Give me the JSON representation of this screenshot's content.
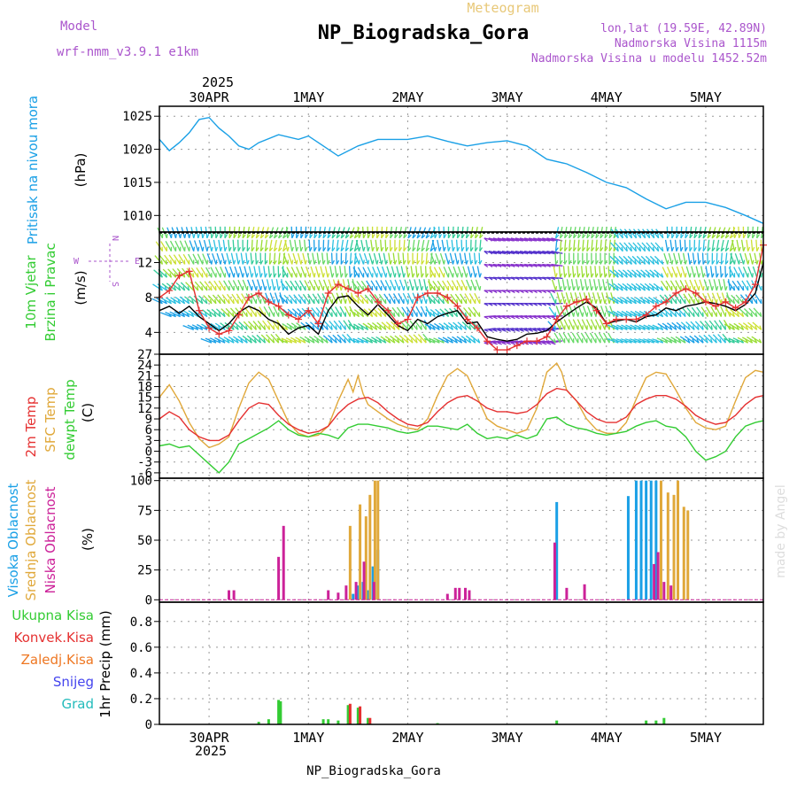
{
  "header": {
    "model_label": "Model",
    "model_name": "wrf-nmm_v3.9.1  e1km",
    "center_title": "Meteogram",
    "station": "NP_Biogradska_Gora",
    "coords": "lon,lat (19.59E, 42.89N)",
    "altitude": "Nadmorska Visina 1115m",
    "model_altitude": "Nadmorska Visina u modelu 1452.52m",
    "footer_station": "NP_Biogradska_Gora",
    "watermark": "made by Angel"
  },
  "time_axis": {
    "year_label": "2025",
    "start": "30APR",
    "ticks": [
      "30APR",
      "1MAY",
      "2MAY",
      "3MAY",
      "4MAY",
      "5MAY"
    ],
    "tick_days": [
      0,
      1,
      2,
      3,
      4,
      5
    ],
    "range_days": [
      -0.5,
      5.58
    ]
  },
  "chart_data": [
    {
      "type": "line",
      "id": "pressure",
      "ylabel_name": "Pritisak na nivou mora",
      "ylabel_unit": "(hPa)",
      "ylim": [
        1007.5,
        1026.5
      ],
      "yticks": [
        1010,
        1015,
        1020,
        1025
      ],
      "grid": true,
      "series": [
        {
          "color": "#1aa0e6",
          "x": [
            -0.5,
            -0.4,
            -0.3,
            -0.2,
            -0.1,
            0.0,
            0.1,
            0.2,
            0.3,
            0.4,
            0.5,
            0.7,
            0.9,
            1.0,
            1.1,
            1.3,
            1.5,
            1.7,
            2.0,
            2.2,
            2.4,
            2.6,
            2.8,
            3.0,
            3.2,
            3.4,
            3.6,
            3.8,
            4.0,
            4.2,
            4.4,
            4.6,
            4.8,
            5.0,
            5.2,
            5.4,
            5.58
          ],
          "y": [
            1021.5,
            1019.8,
            1021.0,
            1022.5,
            1024.5,
            1024.8,
            1023.2,
            1022.0,
            1020.5,
            1020.0,
            1021.0,
            1022.2,
            1021.5,
            1022.0,
            1021.0,
            1019.0,
            1020.5,
            1021.5,
            1021.5,
            1022.0,
            1021.2,
            1020.5,
            1021.0,
            1021.3,
            1020.5,
            1018.5,
            1017.8,
            1016.5,
            1015.0,
            1014.2,
            1012.5,
            1011.0,
            1012.0,
            1012.0,
            1011.2,
            1010.0,
            1008.8
          ]
        }
      ]
    },
    {
      "type": "line",
      "id": "wind",
      "ylabel_name": "10m Vjetar Brzina i Pravac",
      "ylabel_unit": "(m/s)",
      "compass": {
        "w": "W",
        "e": "E",
        "n": "N",
        "s": "S"
      },
      "ylim": [
        1.5,
        15.5
      ],
      "yticks": [
        4,
        8,
        12
      ],
      "grid": true,
      "barb_colors": [
        "#1aa0e6",
        "#29c0e0",
        "#33cc99",
        "#99dd33",
        "#cce033",
        "#66d966",
        "#5533cc",
        "#8833cc"
      ],
      "series": [
        {
          "color": "#000000",
          "x": [
            -0.5,
            -0.4,
            -0.3,
            -0.2,
            -0.1,
            0.0,
            0.1,
            0.2,
            0.3,
            0.4,
            0.5,
            0.6,
            0.7,
            0.8,
            0.9,
            1.0,
            1.1,
            1.2,
            1.3,
            1.4,
            1.5,
            1.6,
            1.7,
            1.8,
            1.9,
            2.0,
            2.1,
            2.2,
            2.3,
            2.4,
            2.5,
            2.6,
            2.7,
            2.8,
            2.9,
            3.0,
            3.1,
            3.2,
            3.3,
            3.4,
            3.5,
            3.6,
            3.7,
            3.8,
            3.9,
            4.0,
            4.1,
            4.2,
            4.3,
            4.4,
            4.5,
            4.6,
            4.7,
            4.8,
            4.9,
            5.0,
            5.1,
            5.2,
            5.3,
            5.4,
            5.5,
            5.58
          ],
          "y": [
            6.5,
            7.0,
            6.2,
            7.0,
            5.8,
            5.0,
            4.2,
            5.0,
            6.3,
            7.0,
            6.5,
            5.5,
            5.0,
            3.8,
            4.5,
            4.8,
            3.8,
            6.5,
            8.0,
            8.2,
            7.0,
            6.0,
            7.2,
            6.0,
            4.8,
            4.2,
            5.5,
            5.0,
            5.8,
            6.2,
            6.5,
            5.0,
            5.2,
            3.5,
            3.2,
            3.0,
            3.2,
            3.8,
            3.9,
            4.2,
            5.2,
            6.0,
            6.8,
            7.5,
            6.8,
            5.0,
            5.3,
            5.5,
            5.2,
            5.8,
            6.0,
            6.8,
            6.5,
            7.0,
            7.2,
            7.5,
            7.3,
            7.0,
            6.5,
            7.2,
            8.5,
            12.0
          ]
        },
        {
          "color": "#e53030",
          "x": [
            -0.5,
            -0.4,
            -0.3,
            -0.2,
            -0.1,
            0.0,
            0.1,
            0.2,
            0.3,
            0.4,
            0.5,
            0.6,
            0.7,
            0.8,
            0.9,
            1.0,
            1.1,
            1.2,
            1.3,
            1.4,
            1.5,
            1.6,
            1.7,
            1.8,
            1.9,
            2.0,
            2.1,
            2.2,
            2.3,
            2.4,
            2.5,
            2.6,
            2.7,
            2.8,
            2.9,
            3.0,
            3.1,
            3.2,
            3.3,
            3.4,
            3.5,
            3.6,
            3.7,
            3.8,
            3.9,
            4.0,
            4.1,
            4.2,
            4.3,
            4.4,
            4.5,
            4.6,
            4.7,
            4.8,
            4.9,
            5.0,
            5.1,
            5.2,
            5.3,
            5.4,
            5.5,
            5.58
          ],
          "y": [
            8.0,
            8.8,
            10.5,
            11.0,
            6.5,
            4.5,
            3.8,
            4.2,
            6.0,
            8.0,
            8.5,
            7.5,
            7.0,
            6.0,
            5.5,
            6.5,
            5.0,
            8.5,
            9.5,
            9.0,
            8.5,
            9.0,
            7.5,
            6.5,
            5.0,
            5.5,
            8.0,
            8.5,
            8.5,
            8.0,
            7.0,
            5.5,
            4.5,
            3.0,
            2.0,
            2.0,
            2.5,
            3.0,
            3.0,
            3.5,
            5.5,
            7.0,
            7.5,
            7.8,
            6.5,
            5.0,
            5.5,
            5.5,
            5.5,
            6.0,
            7.0,
            7.5,
            8.5,
            9.0,
            8.5,
            7.5,
            7.0,
            7.5,
            6.8,
            7.5,
            9.5,
            14.0
          ]
        }
      ]
    },
    {
      "type": "line",
      "id": "temperature",
      "ylabel_t2": "2m Temp",
      "ylabel_sfc": "SFC Temp",
      "ylabel_dew": "dewpt Temp",
      "ylabel_unit": "(C)",
      "ylim": [
        -7.5,
        27
      ],
      "yticks": [
        -6,
        -3,
        0,
        3,
        6,
        9,
        12,
        15,
        18,
        21,
        24,
        27
      ],
      "grid": true,
      "series": [
        {
          "name": "SFC Temp",
          "color": "#e0a83a",
          "x": [
            -0.5,
            -0.4,
            -0.3,
            -0.2,
            -0.1,
            0.0,
            0.1,
            0.2,
            0.3,
            0.4,
            0.5,
            0.6,
            0.7,
            0.8,
            0.9,
            1.0,
            1.1,
            1.2,
            1.3,
            1.4,
            1.45,
            1.5,
            1.55,
            1.6,
            1.7,
            1.8,
            1.9,
            2.0,
            2.1,
            2.2,
            2.3,
            2.4,
            2.5,
            2.6,
            2.7,
            2.8,
            2.9,
            3.0,
            3.1,
            3.2,
            3.3,
            3.4,
            3.5,
            3.55,
            3.6,
            3.7,
            3.8,
            3.9,
            4.0,
            4.1,
            4.2,
            4.3,
            4.4,
            4.5,
            4.6,
            4.7,
            4.8,
            4.9,
            5.0,
            5.1,
            5.2,
            5.3,
            5.4,
            5.5,
            5.58
          ],
          "y": [
            15.0,
            18.5,
            14.0,
            8.0,
            3.5,
            1.0,
            2.0,
            4.0,
            12.0,
            19.0,
            22.0,
            20.0,
            14.0,
            8.0,
            5.0,
            4.0,
            4.5,
            7.0,
            14.0,
            20.0,
            16.5,
            21.0,
            16.0,
            13.0,
            11.0,
            9.0,
            7.5,
            6.5,
            6.0,
            9.0,
            15.5,
            21.0,
            23.0,
            21.0,
            15.0,
            9.0,
            7.0,
            6.0,
            5.0,
            6.0,
            12.0,
            22.0,
            24.5,
            22.0,
            17.0,
            14.0,
            9.0,
            6.0,
            5.0,
            5.0,
            8.0,
            14.5,
            20.5,
            22.0,
            21.5,
            17.0,
            12.0,
            8.0,
            6.5,
            6.0,
            7.0,
            14.0,
            20.5,
            22.5,
            22.0
          ]
        },
        {
          "name": "2m Temp",
          "color": "#e53030",
          "x": [
            -0.5,
            -0.4,
            -0.3,
            -0.2,
            -0.1,
            0.0,
            0.1,
            0.2,
            0.3,
            0.4,
            0.5,
            0.6,
            0.7,
            0.8,
            0.9,
            1.0,
            1.1,
            1.2,
            1.3,
            1.4,
            1.5,
            1.6,
            1.7,
            1.8,
            1.9,
            2.0,
            2.1,
            2.2,
            2.3,
            2.4,
            2.5,
            2.6,
            2.7,
            2.8,
            2.9,
            3.0,
            3.1,
            3.2,
            3.3,
            3.4,
            3.5,
            3.6,
            3.7,
            3.8,
            3.9,
            4.0,
            4.1,
            4.2,
            4.3,
            4.4,
            4.5,
            4.6,
            4.7,
            4.8,
            4.9,
            5.0,
            5.1,
            5.2,
            5.3,
            5.4,
            5.5,
            5.58
          ],
          "y": [
            9.0,
            11.0,
            9.5,
            6.0,
            4.0,
            3.0,
            3.0,
            4.5,
            8.5,
            12.0,
            13.5,
            13.0,
            10.0,
            7.5,
            6.0,
            5.0,
            5.5,
            7.0,
            10.5,
            13.0,
            14.5,
            15.0,
            13.5,
            11.0,
            9.0,
            7.5,
            7.0,
            8.0,
            11.0,
            13.5,
            15.0,
            15.5,
            14.0,
            12.0,
            11.0,
            11.0,
            10.5,
            11.0,
            13.0,
            16.0,
            17.5,
            17.0,
            14.0,
            11.0,
            9.0,
            8.0,
            8.0,
            9.5,
            13.0,
            14.5,
            15.5,
            15.5,
            14.5,
            12.5,
            10.0,
            8.5,
            7.5,
            8.0,
            10.0,
            13.0,
            15.0,
            15.5
          ]
        },
        {
          "name": "dewpt Temp",
          "color": "#33cc33",
          "x": [
            -0.5,
            -0.4,
            -0.3,
            -0.2,
            -0.1,
            0.0,
            0.1,
            0.2,
            0.3,
            0.4,
            0.5,
            0.6,
            0.7,
            0.8,
            0.9,
            1.0,
            1.1,
            1.2,
            1.3,
            1.4,
            1.5,
            1.6,
            1.7,
            1.8,
            1.9,
            2.0,
            2.1,
            2.2,
            2.3,
            2.4,
            2.5,
            2.6,
            2.7,
            2.8,
            2.9,
            3.0,
            3.1,
            3.2,
            3.3,
            3.4,
            3.5,
            3.6,
            3.7,
            3.8,
            3.9,
            4.0,
            4.1,
            4.2,
            4.3,
            4.4,
            4.5,
            4.6,
            4.7,
            4.8,
            4.9,
            5.0,
            5.1,
            5.2,
            5.3,
            5.4,
            5.5,
            5.58
          ],
          "y": [
            1.5,
            2.0,
            1.0,
            1.5,
            -1.0,
            -3.5,
            -6.0,
            -3.0,
            2.0,
            3.5,
            5.0,
            6.5,
            8.5,
            6.0,
            4.5,
            4.0,
            5.0,
            4.5,
            3.5,
            6.5,
            7.5,
            7.5,
            7.0,
            6.5,
            5.5,
            5.0,
            5.5,
            7.0,
            7.0,
            6.5,
            6.0,
            7.5,
            5.0,
            3.5,
            4.0,
            3.5,
            4.5,
            3.5,
            4.5,
            9.0,
            9.5,
            7.5,
            6.5,
            6.0,
            5.0,
            4.5,
            5.0,
            5.5,
            7.0,
            8.0,
            8.5,
            7.0,
            6.5,
            4.0,
            0.0,
            -2.5,
            -1.5,
            0.0,
            4.0,
            7.0,
            8.0,
            8.5
          ]
        }
      ]
    },
    {
      "type": "bar",
      "id": "clouds",
      "ylabel_high": "Visoka Oblacnost",
      "ylabel_mid": "Srednja Oblacnost",
      "ylabel_low": "Niska Oblacnost",
      "ylabel_unit": "(%)",
      "ylim": [
        -2,
        102
      ],
      "yticks": [
        0,
        25,
        50,
        75,
        100
      ],
      "grid": true,
      "series": [
        {
          "name": "Visoka Oblacnost",
          "color": "#1aa0e6",
          "x": [
            1.45,
            1.5,
            1.55,
            1.6,
            1.65,
            1.7,
            3.5,
            4.22,
            4.3,
            4.35,
            4.4,
            4.45,
            4.5
          ],
          "values": [
            5,
            12,
            15,
            8,
            28,
            42,
            82,
            87,
            100,
            100,
            100,
            100,
            100
          ]
        },
        {
          "name": "Srednja Oblacnost",
          "color": "#e0a83a",
          "x": [
            1.42,
            1.52,
            1.58,
            1.62,
            1.67,
            1.7,
            4.55,
            4.62,
            4.68,
            4.72,
            4.78,
            4.82
          ],
          "values": [
            62,
            80,
            70,
            88,
            100,
            100,
            100,
            90,
            88,
            100,
            78,
            75
          ]
        },
        {
          "name": "Niska Oblacnost",
          "color": "#cc2299",
          "x": [
            0.2,
            0.25,
            0.7,
            0.75,
            1.2,
            1.3,
            1.38,
            1.48,
            1.56,
            1.66,
            2.4,
            2.48,
            2.52,
            2.58,
            2.62,
            3.48,
            3.6,
            3.78,
            4.48,
            4.52,
            4.58,
            4.65
          ],
          "values": [
            8,
            8,
            36,
            62,
            8,
            6,
            12,
            15,
            32,
            15,
            5,
            10,
            10,
            10,
            8,
            48,
            10,
            13,
            30,
            40,
            15,
            12
          ]
        }
      ]
    },
    {
      "type": "bar",
      "id": "precip",
      "ylabel": "1hr Precip (mm)",
      "legend": [
        "Ukupna Kisa",
        "Konvek.Kisa",
        "Zaledj.Kisa",
        "Snijeg",
        "Grad"
      ],
      "legend_colors": [
        "#33cc33",
        "#e53030",
        "#ee7722",
        "#4444ee",
        "#22bbbb"
      ],
      "ylim": [
        0,
        0.95
      ],
      "yticks": [
        0,
        0.2,
        0.4,
        0.6,
        0.8
      ],
      "grid": true,
      "series": [
        {
          "name": "Ukupna Kisa",
          "color": "#33cc33",
          "x": [
            0.5,
            0.6,
            0.7,
            0.72,
            1.15,
            1.2,
            1.3,
            1.4,
            1.5,
            1.6,
            2.3,
            3.5,
            4.4,
            4.5,
            4.58
          ],
          "values": [
            0.02,
            0.04,
            0.19,
            0.18,
            0.04,
            0.04,
            0.03,
            0.15,
            0.13,
            0.05,
            0.01,
            0.03,
            0.03,
            0.03,
            0.05
          ]
        },
        {
          "name": "Konvek.Kisa",
          "color": "#e53030",
          "x": [
            1.42,
            1.52,
            1.62
          ],
          "values": [
            0.16,
            0.14,
            0.05
          ]
        }
      ]
    }
  ]
}
